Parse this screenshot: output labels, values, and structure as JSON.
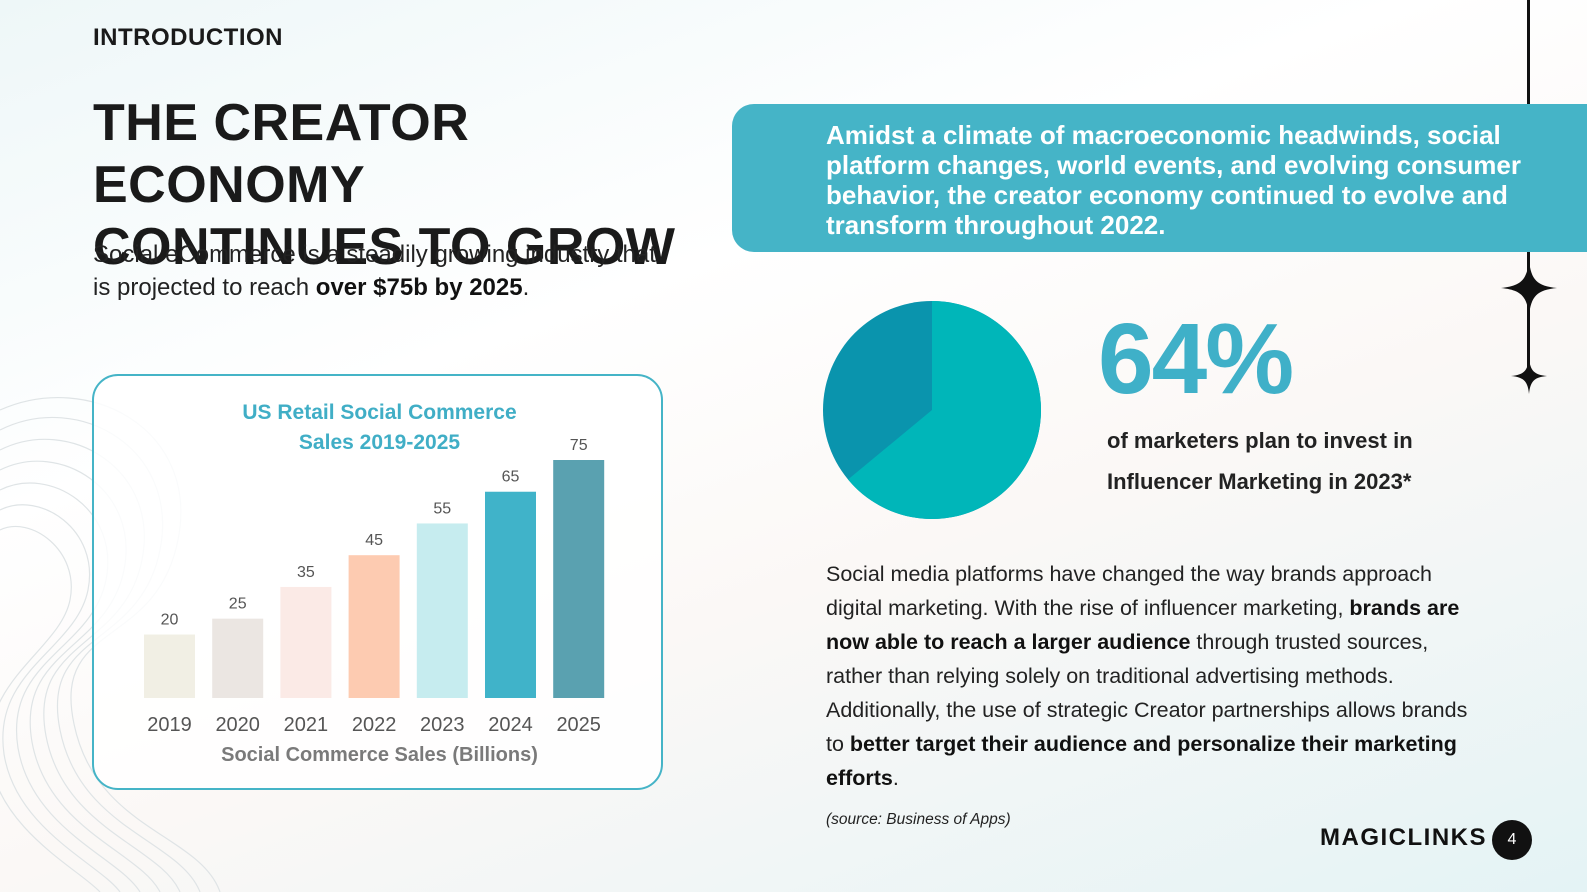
{
  "header": {
    "section": "INTRODUCTION",
    "title_line1": "THE CREATOR ECONOMY",
    "title_line2": "CONTINUES TO GROW"
  },
  "intro": {
    "text_before": "Social eCommerce is a steadily growing industry that is projected to reach ",
    "bold": "over $75b by 2025",
    "text_after": "."
  },
  "banner": {
    "text": "Amidst a climate of macroeconomic headwinds, social platform changes, world events, and evolving consumer behavior, the creator economy continued to evolve and transform throughout 2022."
  },
  "stat": {
    "number": "64%",
    "caption": "of marketers plan to invest in Influencer Marketing in 2023*",
    "fraction": 0.64,
    "colors": {
      "filled": "#00b6b9",
      "remainder": "#0a94ad"
    }
  },
  "body": {
    "p1": "Social media platforms have changed the way brands approach digital marketing. With the rise of influencer marketing, ",
    "b1": "brands are now able to reach a larger audience",
    "p2": " through trusted sources, rather than relying solely on traditional advertising methods. Additionally, the use of strategic Creator partnerships allows brands to ",
    "b2": "better target their audience and personalize their marketing efforts",
    "p3": "."
  },
  "source": "(source: Business of Apps)",
  "footer": {
    "brand": "MAGICLINKS",
    "page": "4"
  },
  "chart_data": {
    "type": "bar",
    "title": "US Retail Social Commerce Sales 2019-2025",
    "title_line1": "US Retail Social Commerce",
    "title_line2": "Sales 2019-2025",
    "xlabel": "Social Commerce Sales (Billions)",
    "ylabel": "",
    "categories": [
      "2019",
      "2020",
      "2021",
      "2022",
      "2023",
      "2024",
      "2025"
    ],
    "values": [
      20,
      25,
      35,
      45,
      55,
      65,
      75
    ],
    "bar_colors": [
      "#f1efe4",
      "#ebe6e2",
      "#fbeae6",
      "#fdcbb1",
      "#c6ecef",
      "#40b3c9",
      "#5aa1b0"
    ],
    "ylim": [
      0,
      75
    ],
    "grid": false
  }
}
